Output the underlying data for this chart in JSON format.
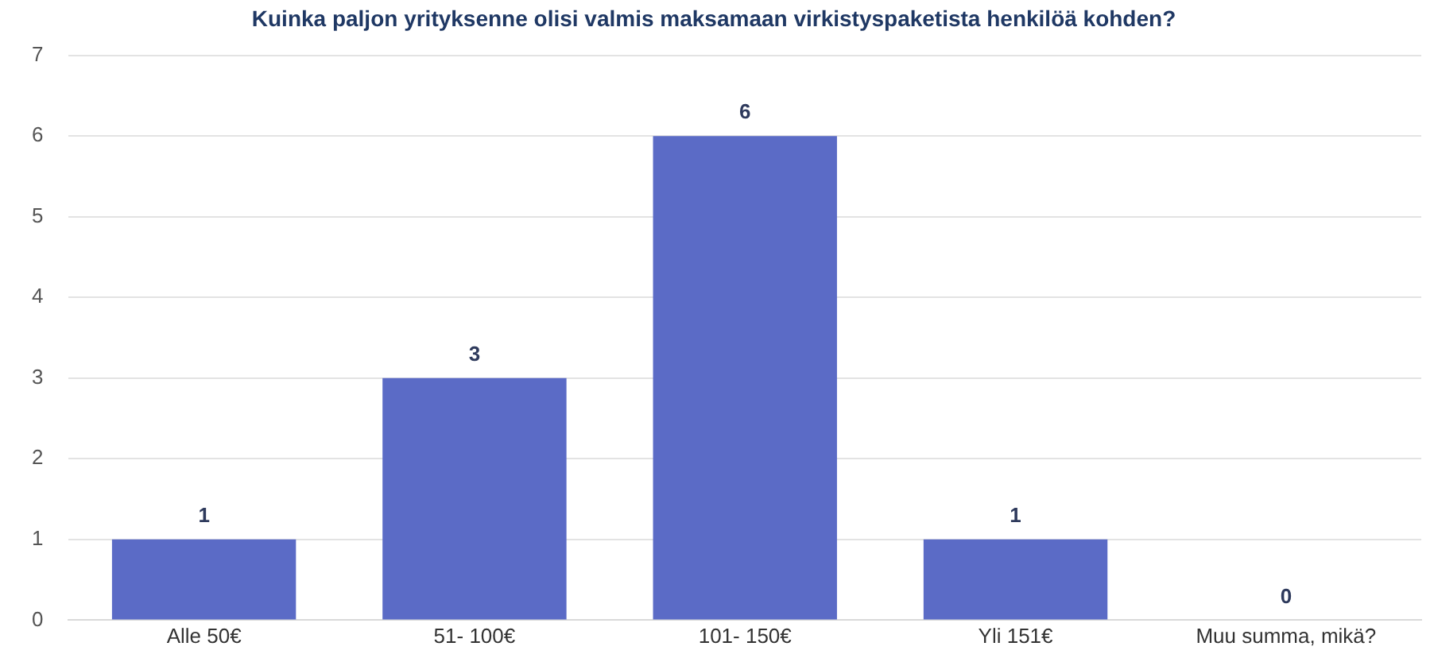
{
  "chart_data": {
    "type": "bar",
    "title": "Kuinka paljon yrityksenne olisi valmis maksamaan virkistyspaketista henkilöä kohden?",
    "categories": [
      "Alle 50€",
      "51- 100€",
      "101- 150€",
      "Yli 151€",
      "Muu summa, mikä?"
    ],
    "values": [
      1,
      3,
      6,
      1,
      0
    ],
    "color": "#5b6bc6",
    "ylim": [
      0,
      7
    ],
    "yticks": [
      0,
      1,
      2,
      3,
      4,
      5,
      6,
      7
    ],
    "grid": "y",
    "data_labels": true,
    "legend": false
  }
}
